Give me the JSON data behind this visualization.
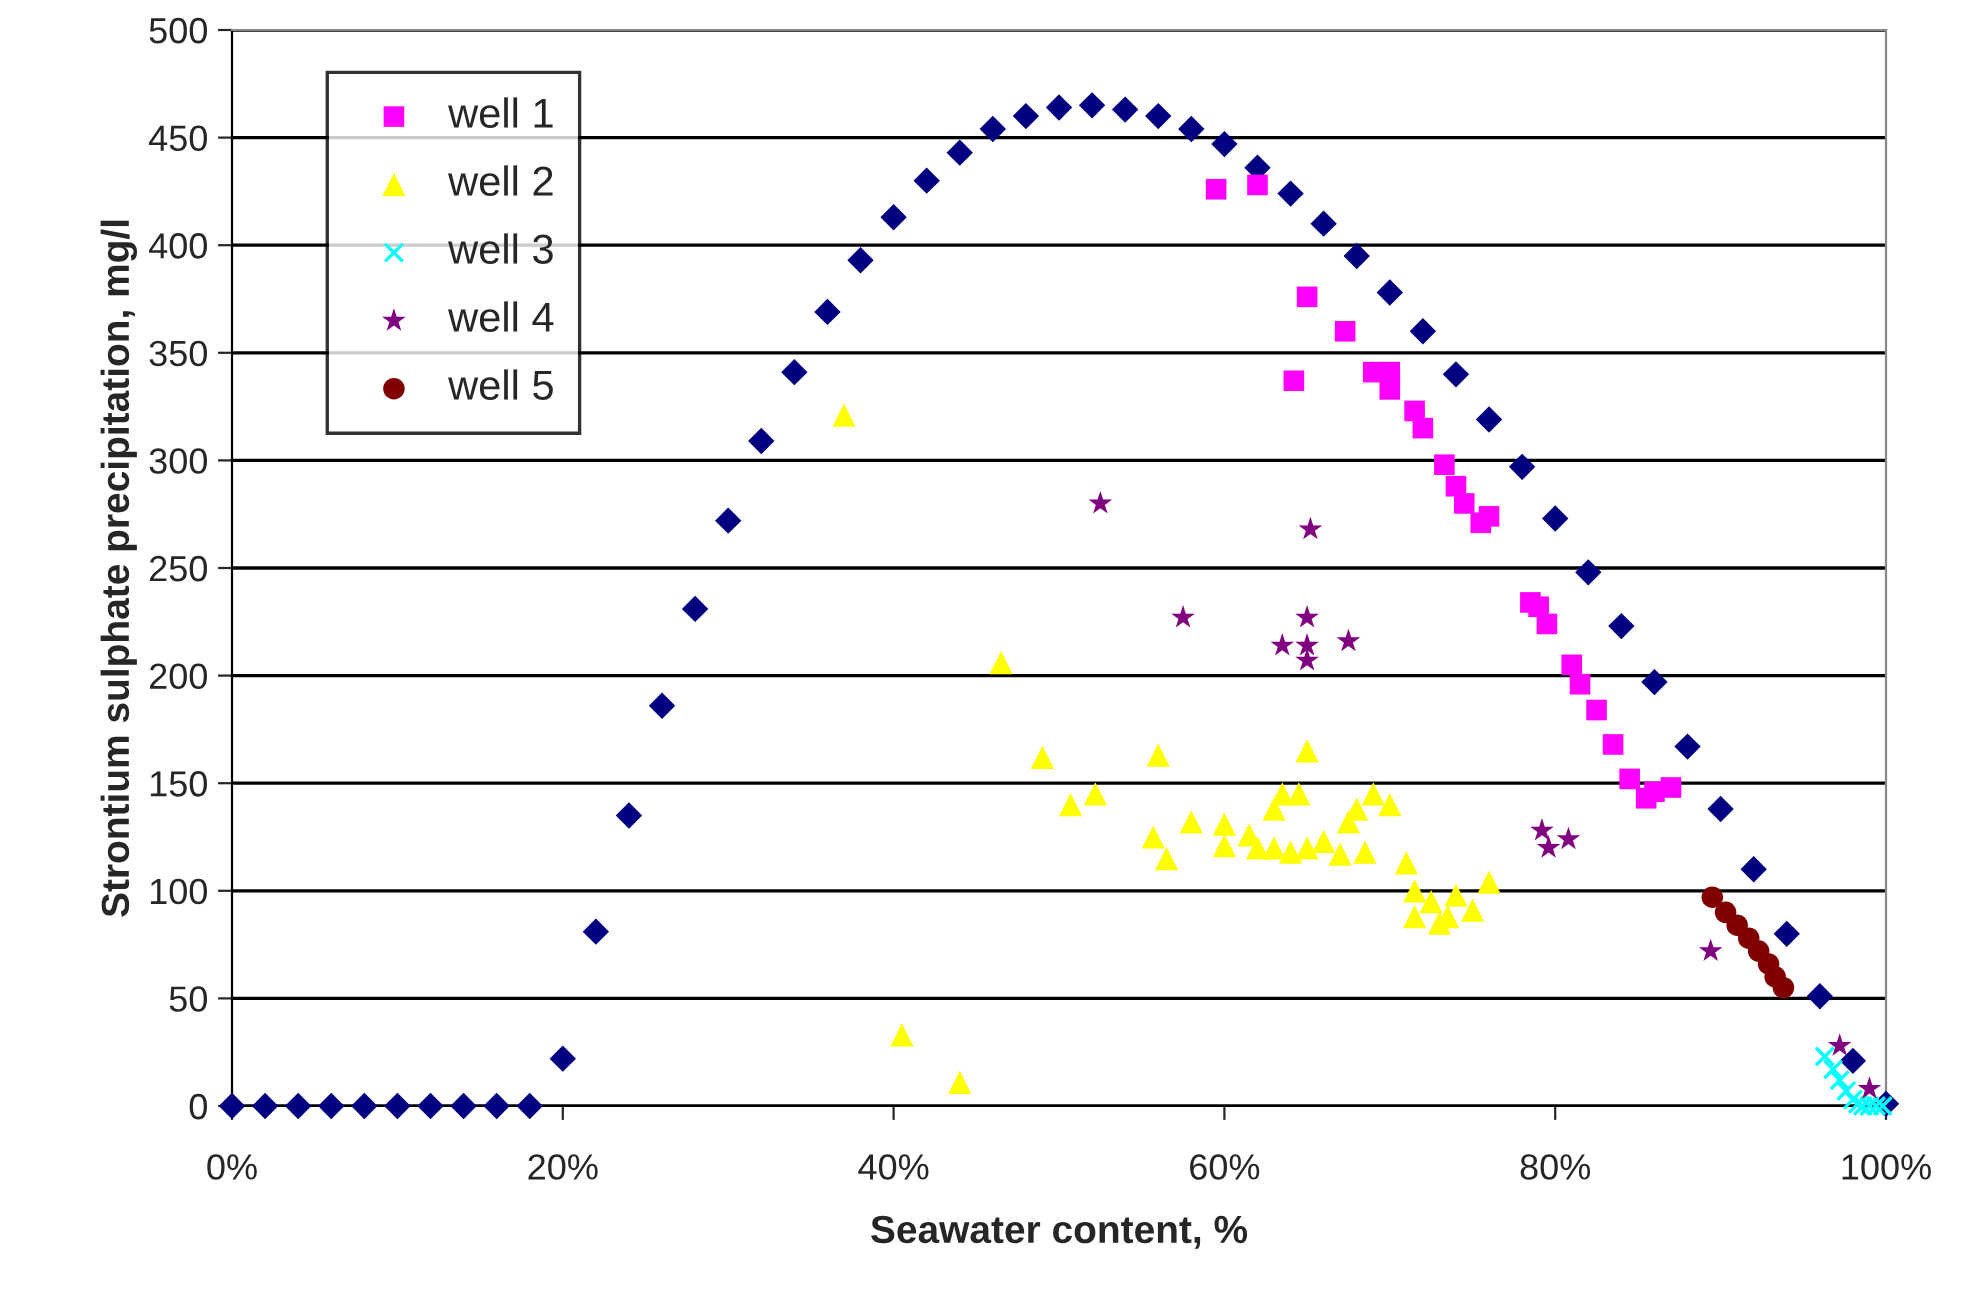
{
  "chart_data": {
    "type": "scatter",
    "xlabel": "Seawater content, %",
    "ylabel": "Strontium sulphate precipitation, mg/l",
    "xlim": [
      0,
      100
    ],
    "xticks": [
      {
        "value": 0,
        "label": "0%"
      },
      {
        "value": 20,
        "label": "20%"
      },
      {
        "value": 40,
        "label": "40%"
      },
      {
        "value": 60,
        "label": "60%"
      },
      {
        "value": 80,
        "label": "80%"
      },
      {
        "value": 100,
        "label": "100%"
      }
    ],
    "ylim": [
      0,
      500
    ],
    "yticks": [
      0,
      50,
      100,
      150,
      200,
      250,
      300,
      350,
      400,
      450,
      500
    ],
    "grid": "y",
    "legend": "top left",
    "series": [
      {
        "color": "#000080",
        "marker": "diamond",
        "x": [
          0,
          2,
          4,
          6,
          8,
          10,
          12,
          14,
          16,
          18,
          20,
          22,
          24,
          26,
          28,
          30,
          32,
          34,
          36,
          38,
          40,
          42,
          44,
          46,
          48,
          50,
          52,
          54,
          56,
          58,
          60,
          62,
          64,
          66,
          68,
          70,
          72,
          74,
          76,
          78,
          80,
          82,
          84,
          86,
          88,
          90,
          92,
          94,
          96,
          98,
          100
        ],
        "values": [
          0,
          0,
          0,
          0,
          0,
          0,
          0,
          0,
          0,
          0,
          22,
          81,
          135,
          186,
          231,
          272,
          309,
          341,
          369,
          393,
          413,
          430,
          443,
          454,
          460,
          464,
          465,
          463,
          460,
          454,
          447,
          436,
          424,
          410,
          395,
          378,
          360,
          340,
          319,
          297,
          273,
          248,
          223,
          197,
          167,
          138,
          110,
          80,
          51,
          21,
          1
        ]
      },
      {
        "name": "well 1",
        "color": "#ff00ff",
        "marker": "square",
        "x": [
          59.5,
          62,
          64.2,
          65,
          67.3,
          69,
          70,
          70,
          71.5,
          72,
          73.3,
          74,
          74.5,
          75.5,
          76,
          78.5,
          79,
          79.5,
          81,
          81.5,
          82.5,
          83.5,
          84.5,
          85.5,
          86,
          87
        ],
        "values": [
          426,
          428,
          337,
          376,
          360,
          341,
          341,
          333,
          323,
          315,
          298,
          288,
          280,
          271,
          274,
          234,
          232,
          224,
          205,
          196,
          184,
          168,
          152,
          143,
          146,
          148
        ]
      },
      {
        "name": "well 2",
        "color": "#ffff00",
        "marker": "triangle",
        "x": [
          37,
          40.5,
          44,
          46.5,
          49,
          50.7,
          52.2,
          56,
          55.7,
          56.5,
          58,
          60,
          60,
          61.5,
          62,
          63,
          63.5,
          63,
          64,
          64.5,
          65,
          65,
          66,
          67,
          68,
          67.5,
          68.5,
          69,
          70,
          71,
          71.5,
          71.5,
          72.5,
          73,
          73.5,
          74,
          75,
          76
        ],
        "values": [
          321,
          33,
          11,
          206,
          162,
          140,
          145,
          163,
          125,
          115,
          132,
          131,
          121,
          126,
          120,
          138,
          145,
          120,
          118,
          145,
          165,
          120,
          123,
          117,
          138,
          132,
          118,
          145,
          140,
          113,
          100,
          88,
          95,
          85,
          88,
          98,
          91,
          104
        ]
      },
      {
        "name": "well 3",
        "color": "#00ffff",
        "marker": "cross",
        "x": [
          96.3,
          96.8,
          97.2,
          97.6,
          98,
          98.3,
          98.6,
          99,
          99.4,
          99.8
        ],
        "values": [
          23,
          17,
          12,
          7,
          3,
          1,
          0,
          0,
          0,
          0
        ]
      },
      {
        "name": "well 4",
        "color": "#800080",
        "marker": "star",
        "x": [
          52.5,
          57.5,
          65.2,
          63.5,
          65,
          65,
          65,
          67.5,
          79.2,
          79.6,
          80.8,
          89.4,
          97.2,
          99
        ],
        "values": [
          280,
          227,
          268,
          214,
          227,
          214,
          207,
          216,
          128,
          120,
          124,
          72,
          28,
          8
        ]
      },
      {
        "name": "well 5",
        "color": "#800000",
        "marker": "circle",
        "x": [
          89.5,
          90.3,
          91,
          91.7,
          92.3,
          92.9,
          93.3,
          93.8
        ],
        "values": [
          97,
          90,
          84,
          78,
          72,
          66,
          60,
          55
        ]
      }
    ]
  }
}
